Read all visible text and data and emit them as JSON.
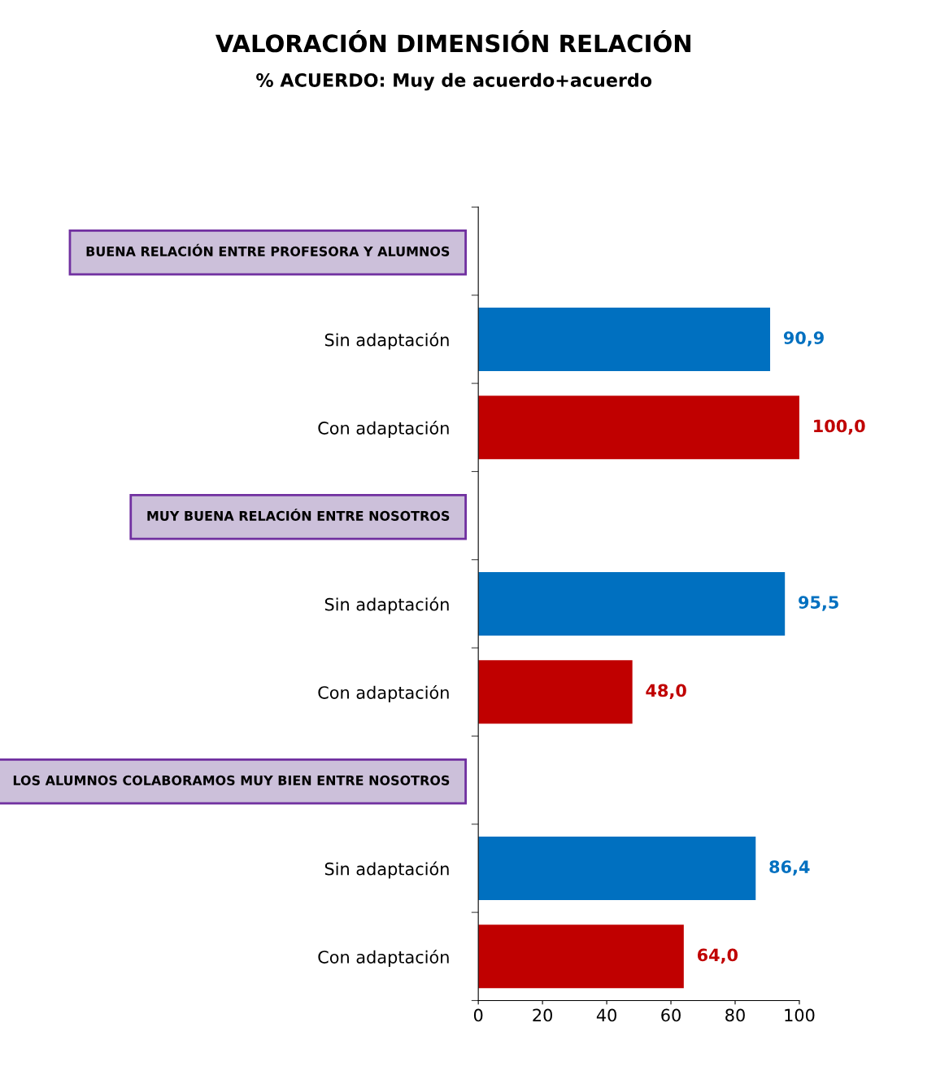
{
  "chart_data": {
    "type": "bar",
    "orientation": "horizontal",
    "title": "VALORACIÓN DIMENSIÓN RELACIÓN",
    "subtitle": "% ACUERDO: Muy de acuerdo+acuerdo",
    "categories": [
      "BUENA RELACIÓN ENTRE PROFESORA Y ALUMNOS",
      "Sin adaptación",
      "Con adaptación",
      "MUY BUENA RELACIÓN ENTRE NOSOTROS",
      "Sin adaptación",
      "Con adaptación",
      "LOS ALUMNOS COLABORAMOS MUY BIEN ENTRE NOSOTROS",
      "Sin adaptación",
      "Con adaptación"
    ],
    "values": [
      null,
      90.9,
      100.0,
      null,
      95.5,
      48.0,
      null,
      86.4,
      64.0
    ],
    "colors": [
      "#0070c0",
      "#0070c0",
      "#c00000",
      "#0070c0",
      "#0070c0",
      "#c00000",
      "#0070c0",
      "#0070c0",
      "#c00000"
    ],
    "value_labels": [
      null,
      "90,9",
      "100,0",
      null,
      "95,5",
      "48,0",
      null,
      "86,4",
      "64,0"
    ],
    "xlim": [
      0,
      100
    ],
    "xticks": [
      0,
      20,
      40,
      60,
      80,
      100
    ],
    "grid": false,
    "legend": false
  }
}
